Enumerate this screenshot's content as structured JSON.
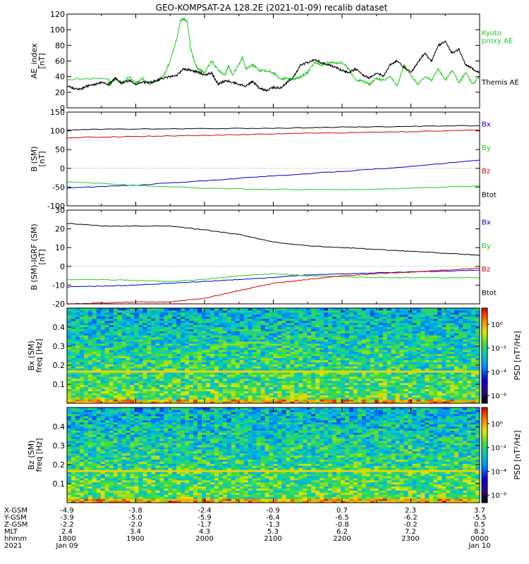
{
  "title": "GEO-KOMPSAT-2A 128.2E (2021-01-09) recalib dataset",
  "colors": {
    "black": "#000000",
    "red": "#dd0000",
    "green": "#22cc22",
    "blue": "#0000cc"
  },
  "chart_data": [
    {
      "type": "line",
      "ylabel": "AE_index\n[nT]",
      "ylim": [
        0,
        120
      ],
      "yticks": [
        0,
        20,
        40,
        60,
        80,
        100,
        120
      ],
      "xlim": [
        18,
        24
      ],
      "series": [
        {
          "name": "Kyoto\nproxy AE",
          "color": "#22cc22",
          "x": [
            18.0,
            18.6,
            18.62,
            18.7,
            18.8,
            18.9,
            19.0,
            19.1,
            19.2,
            19.3,
            19.4,
            19.5,
            19.6,
            19.65,
            19.7,
            19.75,
            19.8,
            19.85,
            19.9,
            19.95,
            20.0,
            20.1,
            20.2,
            20.3,
            20.35,
            20.4,
            20.5,
            20.55,
            20.6,
            20.7,
            20.8,
            20.9,
            21.0,
            21.1,
            21.2,
            21.3,
            21.35,
            21.4,
            21.5,
            21.6,
            21.7,
            21.8,
            21.9,
            22.0,
            22.1,
            22.2,
            22.3,
            22.4,
            22.5,
            22.6,
            22.7,
            22.8,
            22.9,
            23.0,
            23.1,
            23.2,
            23.3,
            23.4,
            23.5,
            23.6,
            23.7,
            23.8,
            23.9,
            24.0
          ],
          "y": [
            37,
            37,
            28,
            38,
            30,
            40,
            32,
            38,
            30,
            35,
            40,
            60,
            90,
            112,
            114,
            110,
            75,
            60,
            50,
            48,
            45,
            60,
            48,
            42,
            55,
            42,
            55,
            65,
            50,
            55,
            48,
            48,
            45,
            37,
            38,
            37,
            38,
            40,
            45,
            58,
            55,
            58,
            58,
            58,
            50,
            35,
            35,
            30,
            38,
            35,
            40,
            28,
            55,
            42,
            30,
            40,
            35,
            50,
            35,
            48,
            32,
            45,
            30,
            40
          ]
        },
        {
          "name": "Themis AE",
          "color": "#000000",
          "x": [
            18.0,
            18.1,
            18.2,
            18.3,
            18.4,
            18.5,
            18.6,
            18.7,
            18.8,
            18.9,
            19.0,
            19.1,
            19.2,
            19.3,
            19.4,
            19.5,
            19.6,
            19.7,
            19.8,
            19.9,
            20.0,
            20.1,
            20.2,
            20.3,
            20.4,
            20.5,
            20.6,
            20.7,
            20.8,
            20.9,
            21.0,
            21.1,
            21.2,
            21.3,
            21.4,
            21.5,
            21.6,
            21.7,
            21.8,
            21.9,
            22.0,
            22.1,
            22.2,
            22.3,
            22.4,
            22.5,
            22.6,
            22.7,
            22.8,
            22.9,
            23.0,
            23.1,
            23.2,
            23.3,
            23.4,
            23.5,
            23.6,
            23.7,
            23.8,
            23.9,
            24.0
          ],
          "y": [
            28,
            25,
            24,
            28,
            30,
            33,
            30,
            38,
            32,
            35,
            30,
            33,
            32,
            35,
            38,
            40,
            42,
            50,
            48,
            46,
            42,
            45,
            30,
            35,
            33,
            30,
            28,
            34,
            25,
            22,
            26,
            25,
            33,
            40,
            55,
            58,
            62,
            58,
            55,
            52,
            48,
            45,
            50,
            42,
            38,
            45,
            40,
            55,
            60,
            52,
            45,
            58,
            70,
            60,
            80,
            85,
            70,
            75,
            55,
            50,
            45
          ]
        }
      ],
      "legend_position": "right"
    },
    {
      "type": "line",
      "ylabel": "B (SM)\n[nT]",
      "ylim": [
        -100,
        150
      ],
      "yticks": [
        -100,
        -50,
        0,
        50,
        100,
        150
      ],
      "xlim": [
        18,
        24
      ],
      "series": [
        {
          "name": "Bx",
          "color": "#0000cc",
          "x": [
            18,
            19,
            20,
            21,
            22,
            23,
            24
          ],
          "y": [
            -52,
            -45,
            -33,
            -20,
            -8,
            5,
            22
          ]
        },
        {
          "name": "By",
          "color": "#22cc22",
          "x": [
            18,
            18.5,
            19,
            20,
            21,
            22,
            23,
            24
          ],
          "y": [
            -36,
            -40,
            -46,
            -53,
            -56,
            -57,
            -53,
            -47
          ]
        },
        {
          "name": "Bz",
          "color": "#dd0000",
          "x": [
            18,
            19,
            20,
            21,
            22,
            23,
            24
          ],
          "y": [
            82,
            85,
            88,
            92,
            95,
            98,
            102
          ]
        },
        {
          "name": "Btot",
          "color": "#000000",
          "x": [
            18,
            19,
            20,
            21,
            22,
            23,
            24
          ],
          "y": [
            103,
            105,
            106,
            107,
            110,
            112,
            114
          ]
        }
      ],
      "legend_position": "right"
    },
    {
      "type": "line",
      "ylabel": "B (SM)-IGRF (SM)\n[nT]",
      "ylim": [
        -20,
        30
      ],
      "yticks": [
        -20,
        -10,
        0,
        10,
        20,
        30
      ],
      "xlim": [
        18,
        24
      ],
      "series": [
        {
          "name": "Bx",
          "color": "#0000cc",
          "x": [
            18,
            18.5,
            19,
            19.5,
            20,
            20.5,
            21,
            21.5,
            22,
            22.5,
            23,
            23.5,
            24
          ],
          "y": [
            -11,
            -10.5,
            -10,
            -9,
            -8,
            -7,
            -6,
            -4.5,
            -4,
            -3.5,
            -3,
            -2.5,
            -2
          ]
        },
        {
          "name": "By",
          "color": "#22cc22",
          "x": [
            18,
            18.5,
            19,
            19.5,
            20,
            20.5,
            21,
            21.5,
            22,
            22.5,
            23,
            23.5,
            24
          ],
          "y": [
            -7,
            -7,
            -7.5,
            -8,
            -7,
            -5,
            -4,
            -5,
            -5.5,
            -6,
            -6,
            -6,
            -6
          ]
        },
        {
          "name": "Bz",
          "color": "#dd0000",
          "x": [
            18,
            18.5,
            19,
            19.5,
            20,
            20.5,
            21,
            21.5,
            22,
            22.5,
            23,
            23.5,
            24
          ],
          "y": [
            -20,
            -19.5,
            -19,
            -19,
            -17,
            -13,
            -9,
            -7,
            -5,
            -4,
            -3,
            -2,
            -1
          ]
        },
        {
          "name": "Btot",
          "color": "#000000",
          "x": [
            18,
            18.5,
            19,
            19.5,
            20,
            20.5,
            21,
            21.5,
            22,
            22.5,
            23,
            23.5,
            24
          ],
          "y": [
            23,
            21.5,
            21.5,
            21.5,
            19.5,
            17,
            13,
            11,
            10,
            9,
            8,
            7,
            6
          ]
        }
      ],
      "legend_position": "right"
    },
    {
      "type": "heatmap",
      "ylabel": "Bx (SM)\nfreq [Hz]",
      "ylim": [
        0,
        0.5
      ],
      "yticks": [
        0.1,
        0.2,
        0.3,
        0.4
      ],
      "xlim": [
        18,
        24
      ],
      "colorbar_label": "PSD [nT²/Hz]",
      "colorbar_ticks": [
        "10⁰",
        "10⁻²",
        "10⁻⁴",
        "10⁻⁶"
      ]
    },
    {
      "type": "heatmap",
      "ylabel": "Bz (SM)\nfreq [Hz]",
      "ylim": [
        0,
        0.5
      ],
      "yticks": [
        0.1,
        0.2,
        0.3,
        0.4
      ],
      "xlim": [
        18,
        24
      ],
      "colorbar_label": "PSD [nT²/Hz]",
      "colorbar_ticks": [
        "10⁰",
        "10⁻²",
        "10⁻⁴",
        "10⁻⁶"
      ]
    }
  ],
  "ephemeris": {
    "rows": [
      {
        "label": "X-GSM",
        "values": [
          "-4.9",
          "-3.8",
          "-2.4",
          "-0.9",
          "0.7",
          "2.3",
          "3.7"
        ]
      },
      {
        "label": "Y-GSM",
        "values": [
          "-3.9",
          "-5.0",
          "-5.9",
          "-6.4",
          "-6.5",
          "-6.2",
          "-5.5"
        ]
      },
      {
        "label": "Z-GSM",
        "values": [
          "-2.2",
          "-2.0",
          "-1.7",
          "-1.3",
          "-0.8",
          "-0.2",
          "0.5"
        ]
      },
      {
        "label": "MLT",
        "values": [
          "2.4",
          "3.4",
          "4.3",
          "5.3",
          "6.2",
          "7.2",
          "8.2"
        ]
      },
      {
        "label": "hhmm",
        "values": [
          "1800",
          "1900",
          "2000",
          "2100",
          "2200",
          "2300",
          "0000"
        ]
      },
      {
        "label": "2021",
        "values": [
          "Jan 09",
          "",
          "",
          "",
          "",
          "",
          "Jan 10"
        ]
      }
    ]
  }
}
